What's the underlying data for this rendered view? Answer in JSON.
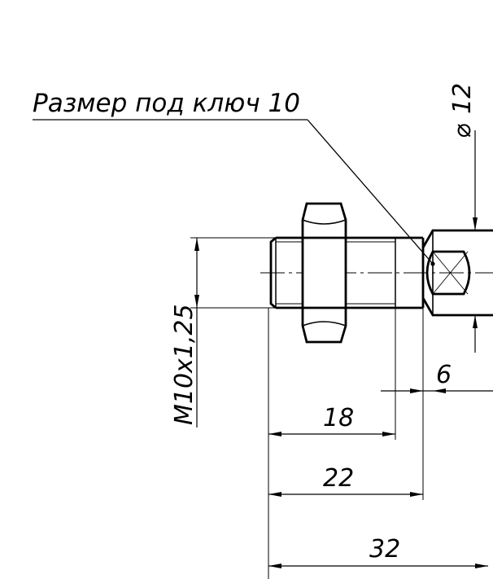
{
  "drawing": {
    "callout": "Размер под ключ 10",
    "diameter_symbol": "⌀",
    "diameter_value": "12",
    "thread": "M10x1,25",
    "dim_6": "6",
    "dim_18": "18",
    "dim_22": "22",
    "dim_32": "32"
  }
}
